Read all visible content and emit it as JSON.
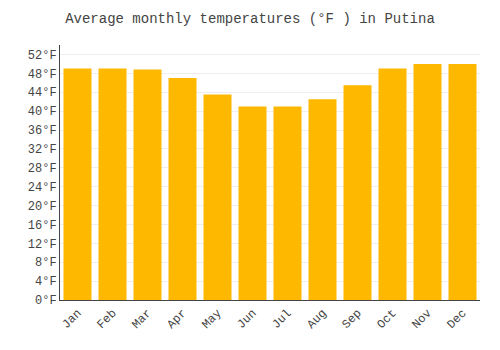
{
  "chart_data": {
    "type": "bar",
    "title": "Average monthly temperatures (°F ) in Putina",
    "categories": [
      "Jan",
      "Feb",
      "Mar",
      "Apr",
      "May",
      "Jun",
      "Jul",
      "Aug",
      "Sep",
      "Oct",
      "Nov",
      "Dec"
    ],
    "values": [
      49.0,
      49.0,
      48.8,
      47.0,
      43.5,
      41.0,
      41.0,
      42.5,
      45.5,
      49.0,
      50.0,
      50.0
    ],
    "color": "#FFB800",
    "ylim": [
      0,
      54
    ],
    "yticks": [
      {
        "value": 0,
        "label": "0°F"
      },
      {
        "value": 4,
        "label": "4°F"
      },
      {
        "value": 8,
        "label": "8°F"
      },
      {
        "value": 12,
        "label": "12°F"
      },
      {
        "value": 16,
        "label": "16°F"
      },
      {
        "value": 20,
        "label": "20°F"
      },
      {
        "value": 24,
        "label": "24°F"
      },
      {
        "value": 28,
        "label": "28°F"
      },
      {
        "value": 32,
        "label": "32°F"
      },
      {
        "value": 36,
        "label": "36°F"
      },
      {
        "value": 40,
        "label": "40°F"
      },
      {
        "value": 44,
        "label": "44°F"
      },
      {
        "value": 48,
        "label": "48°F"
      },
      {
        "value": 52,
        "label": "52°F"
      }
    ],
    "grid": true
  }
}
